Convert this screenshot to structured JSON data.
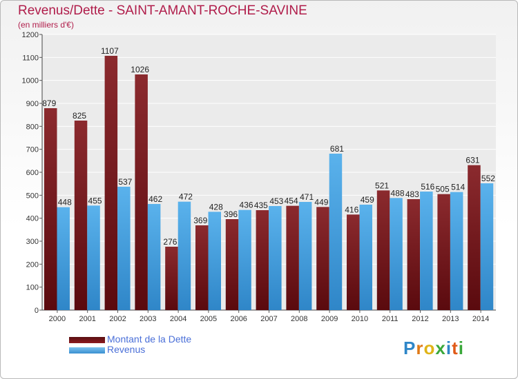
{
  "chart_data": {
    "type": "bar",
    "title": "Revenus/Dette - SAINT-AMANT-ROCHE-SAVINE",
    "subtitle": "(en milliers d'€)",
    "categories": [
      "2000",
      "2001",
      "2002",
      "2003",
      "2004",
      "2005",
      "2006",
      "2007",
      "2008",
      "2009",
      "2010",
      "2011",
      "2012",
      "2013",
      "2014"
    ],
    "series": [
      {
        "name": "Montant de la Dette",
        "color": "#8b1a1e",
        "values": [
          879,
          825,
          1107,
          1026,
          276,
          369,
          396,
          435,
          454,
          449,
          416,
          521,
          483,
          505,
          631
        ]
      },
      {
        "name": "Revenus",
        "color": "#4aa3e0",
        "values": [
          448,
          455,
          537,
          462,
          472,
          428,
          436,
          453,
          471,
          681,
          459,
          488,
          516,
          514,
          552
        ]
      }
    ],
    "ylim": [
      0,
      1200
    ],
    "yticks": [
      0,
      100,
      200,
      300,
      400,
      500,
      600,
      700,
      800,
      900,
      1000,
      1100,
      1200
    ],
    "grid": true,
    "legend_position": "bottom-left"
  },
  "logo": {
    "letters": [
      "P",
      "r",
      "o",
      "x",
      "i",
      "t",
      "i"
    ]
  }
}
